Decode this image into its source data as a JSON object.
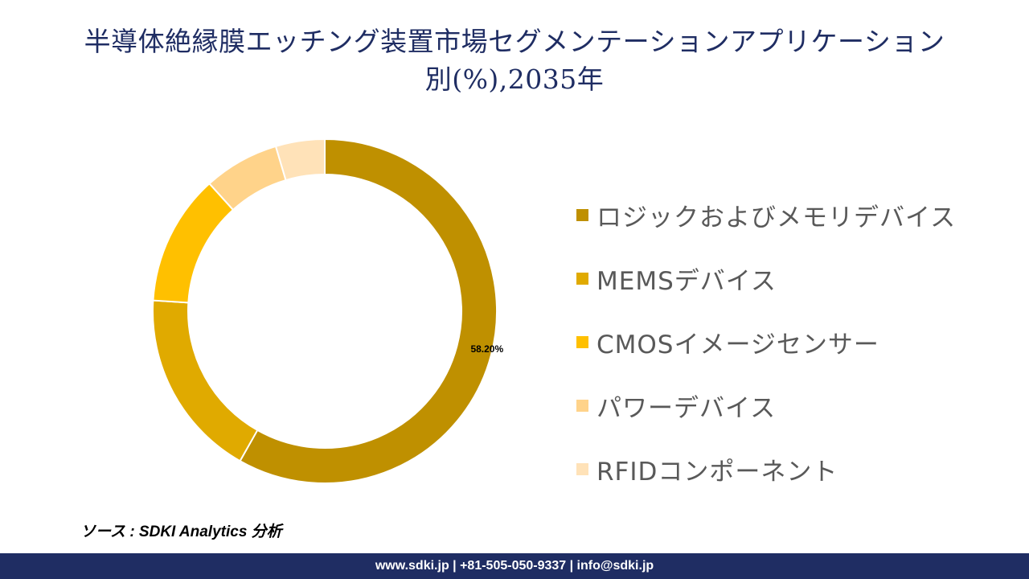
{
  "title": {
    "line1": "半導体絶縁膜エッチング装置市場セグメンテーションアプリケーション",
    "line2": "別(%),2035年"
  },
  "source": "ソース : SDKI Analytics 分析",
  "footer": {
    "contact": "www.sdki.jp | +81-505-050-9337 | info@sdki.jp"
  },
  "colors": {
    "title": "#1f2d63",
    "footer_bg": "#1f2d63",
    "legend_text": "#595959"
  },
  "chart_data": {
    "type": "pie",
    "variant": "donut",
    "categories": [
      "ロジックおよびメモリデバイス",
      "MEMSデバイス",
      "CMOSイメージセンサー",
      "パワーデバイス",
      "RFIDコンポーネント"
    ],
    "values": [
      58.2,
      17.8,
      12.3,
      7.1,
      4.6
    ],
    "colors": [
      "#bf9000",
      "#e0aa00",
      "#ffc000",
      "#ffd38a",
      "#ffe2b8"
    ],
    "data_labels": [
      "58.20%",
      "",
      "",
      "",
      ""
    ],
    "legend_position": "right",
    "start_angle": "top",
    "direction": "clockwise"
  }
}
